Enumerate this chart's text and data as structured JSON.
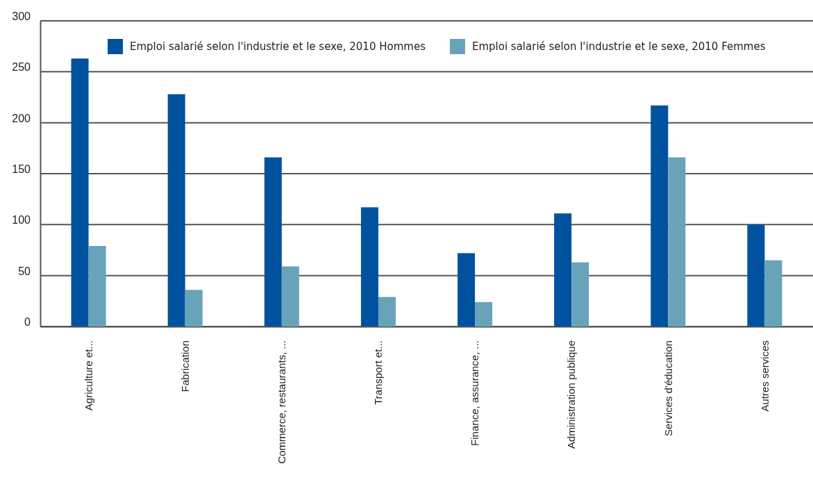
{
  "chart_data": {
    "type": "bar",
    "categories": [
      "Agriculture et...",
      "Fabrication",
      "Commerce, restaurants, ...",
      "Transport et...",
      "Finance, assurance, ...",
      "Administration publique",
      "Services d'éducation",
      "Autres services"
    ],
    "series": [
      {
        "name": "Emploi salarié selon l'industrie et le sexe, 2010 Hommes",
        "color": "#00529f",
        "values": [
          263,
          228,
          166,
          117,
          72,
          111,
          217,
          100
        ]
      },
      {
        "name": "Emploi salarié selon l'industrie et le sexe, 2010 Femmes",
        "color": "#69a3ba",
        "values": [
          79,
          36,
          59,
          29,
          24,
          63,
          166,
          65
        ]
      }
    ],
    "ylim": [
      0,
      300
    ],
    "yticks": [
      0,
      50,
      100,
      150,
      200,
      250,
      300
    ],
    "grid": "y",
    "legend": "top"
  }
}
